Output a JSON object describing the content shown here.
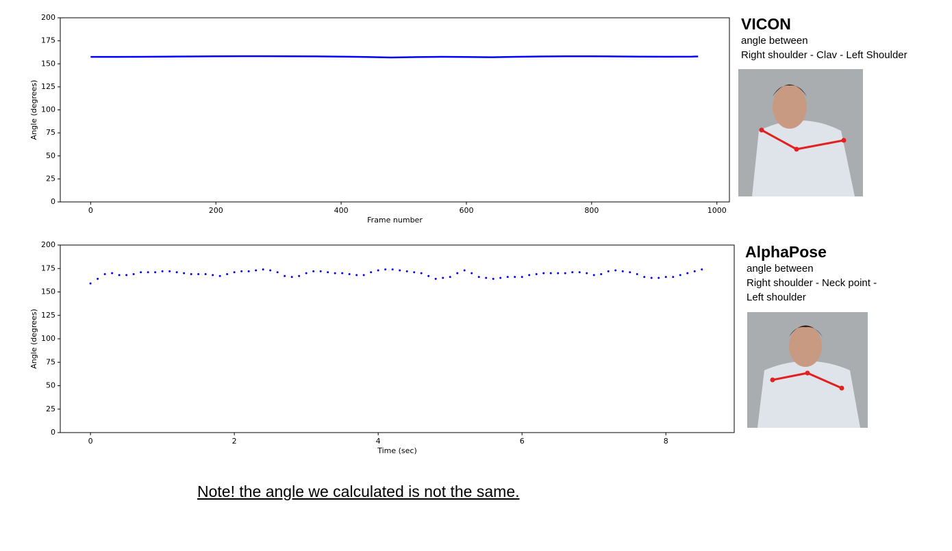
{
  "chart_data": [
    {
      "type": "line",
      "ylabel": "Angle (degrees)",
      "xlabel": "Frame number",
      "annotations": [
        "VICON",
        "angle between",
        "Right shoulder - Clav - Left Shoulder"
      ],
      "x": [
        0,
        40,
        80,
        120,
        160,
        200,
        240,
        280,
        320,
        360,
        400,
        440,
        480,
        520,
        560,
        600,
        640,
        680,
        720,
        760,
        800,
        840,
        880,
        920,
        960,
        970
      ],
      "series": [
        {
          "color": "#0000ff",
          "values": [
            157.5,
            157.5,
            157.6,
            157.8,
            158,
            158.2,
            158.3,
            158.3,
            158.2,
            158.1,
            157.8,
            157.4,
            156.9,
            157.3,
            157.6,
            157.4,
            157.2,
            157.6,
            158,
            158.2,
            158.2,
            158,
            157.8,
            157.7,
            157.8,
            158
          ]
        }
      ],
      "xlim": [
        -48.5,
        1020
      ],
      "xticks": [
        0,
        200,
        400,
        600,
        800,
        1000
      ],
      "ylim": [
        0,
        200
      ],
      "yticks": [
        0,
        25,
        50,
        75,
        100,
        125,
        150,
        175,
        200
      ]
    },
    {
      "type": "scatter",
      "ylabel": "Angle (degrees)",
      "xlabel": "Time (sec)",
      "annotations": [
        "AlphaPose",
        "angle between",
        "Right shoulder - Neck point -Left shoulder"
      ],
      "x": [
        0,
        0.1,
        0.2,
        0.3,
        0.4,
        0.5,
        0.6,
        0.7,
        0.8,
        0.9,
        1.0,
        1.1,
        1.2,
        1.3,
        1.4,
        1.5,
        1.6,
        1.7,
        1.8,
        1.9,
        2.0,
        2.1,
        2.2,
        2.3,
        2.4,
        2.5,
        2.6,
        2.7,
        2.8,
        2.9,
        3.0,
        3.1,
        3.2,
        3.3,
        3.4,
        3.5,
        3.6,
        3.7,
        3.8,
        3.9,
        4.0,
        4.1,
        4.2,
        4.3,
        4.4,
        4.5,
        4.6,
        4.7,
        4.8,
        4.9,
        5.0,
        5.1,
        5.2,
        5.3,
        5.4,
        5.5,
        5.6,
        5.7,
        5.8,
        5.9,
        6.0,
        6.1,
        6.2,
        6.3,
        6.4,
        6.5,
        6.6,
        6.7,
        6.8,
        6.9,
        7.0,
        7.1,
        7.2,
        7.3,
        7.4,
        7.5,
        7.6,
        7.7,
        7.8,
        7.9,
        8.0,
        8.1,
        8.2,
        8.3,
        8.4,
        8.5
      ],
      "series": [
        {
          "color": "#0000ff",
          "values": [
            159,
            164,
            169,
            170,
            168,
            168,
            169,
            171,
            171,
            171,
            172,
            172,
            171,
            170,
            169,
            169,
            169,
            168,
            167,
            169,
            171,
            172,
            172,
            173,
            174,
            173,
            171,
            167,
            166,
            167,
            170,
            172,
            172,
            171,
            170,
            170,
            169,
            168,
            168,
            171,
            173,
            174,
            174,
            173,
            172,
            171,
            170,
            167,
            164,
            165,
            166,
            170,
            173,
            170,
            166,
            165,
            164,
            165,
            166,
            166,
            166,
            168,
            169,
            170,
            170,
            170,
            170,
            171,
            171,
            170,
            168,
            169,
            172,
            173,
            172,
            171,
            169,
            166,
            165,
            165,
            166,
            166,
            168,
            170,
            172,
            174
          ]
        }
      ],
      "xlim": [
        -0.42,
        8.95
      ],
      "xticks": [
        0,
        2,
        4,
        6,
        8
      ],
      "ylim": [
        0,
        200
      ],
      "yticks": [
        0,
        25,
        50,
        75,
        100,
        125,
        150,
        175,
        200
      ]
    }
  ],
  "note": "Note! the angle we calculated is not the same."
}
